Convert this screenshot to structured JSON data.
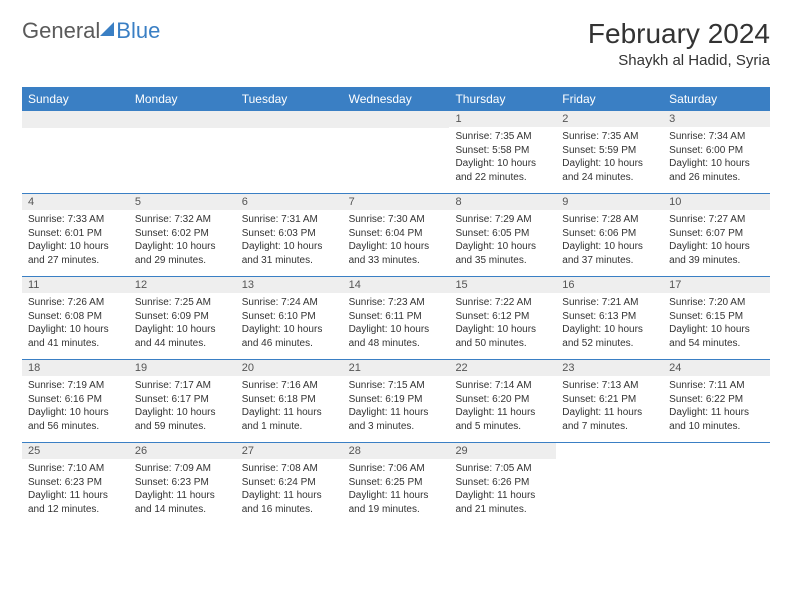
{
  "logo": {
    "part1": "General",
    "part2": "Blue"
  },
  "header": {
    "month_title": "February 2024",
    "location": "Shaykh al Hadid, Syria"
  },
  "colors": {
    "header_bg": "#3a7fc4",
    "header_text": "#ffffff",
    "daynum_bg": "#eeeeee",
    "divider": "#3a7fc4",
    "body_text": "#333333"
  },
  "day_names": [
    "Sunday",
    "Monday",
    "Tuesday",
    "Wednesday",
    "Thursday",
    "Friday",
    "Saturday"
  ],
  "weeks": [
    [
      null,
      null,
      null,
      null,
      {
        "n": "1",
        "sunrise": "Sunrise: 7:35 AM",
        "sunset": "Sunset: 5:58 PM",
        "dl1": "Daylight: 10 hours",
        "dl2": "and 22 minutes."
      },
      {
        "n": "2",
        "sunrise": "Sunrise: 7:35 AM",
        "sunset": "Sunset: 5:59 PM",
        "dl1": "Daylight: 10 hours",
        "dl2": "and 24 minutes."
      },
      {
        "n": "3",
        "sunrise": "Sunrise: 7:34 AM",
        "sunset": "Sunset: 6:00 PM",
        "dl1": "Daylight: 10 hours",
        "dl2": "and 26 minutes."
      }
    ],
    [
      {
        "n": "4",
        "sunrise": "Sunrise: 7:33 AM",
        "sunset": "Sunset: 6:01 PM",
        "dl1": "Daylight: 10 hours",
        "dl2": "and 27 minutes."
      },
      {
        "n": "5",
        "sunrise": "Sunrise: 7:32 AM",
        "sunset": "Sunset: 6:02 PM",
        "dl1": "Daylight: 10 hours",
        "dl2": "and 29 minutes."
      },
      {
        "n": "6",
        "sunrise": "Sunrise: 7:31 AM",
        "sunset": "Sunset: 6:03 PM",
        "dl1": "Daylight: 10 hours",
        "dl2": "and 31 minutes."
      },
      {
        "n": "7",
        "sunrise": "Sunrise: 7:30 AM",
        "sunset": "Sunset: 6:04 PM",
        "dl1": "Daylight: 10 hours",
        "dl2": "and 33 minutes."
      },
      {
        "n": "8",
        "sunrise": "Sunrise: 7:29 AM",
        "sunset": "Sunset: 6:05 PM",
        "dl1": "Daylight: 10 hours",
        "dl2": "and 35 minutes."
      },
      {
        "n": "9",
        "sunrise": "Sunrise: 7:28 AM",
        "sunset": "Sunset: 6:06 PM",
        "dl1": "Daylight: 10 hours",
        "dl2": "and 37 minutes."
      },
      {
        "n": "10",
        "sunrise": "Sunrise: 7:27 AM",
        "sunset": "Sunset: 6:07 PM",
        "dl1": "Daylight: 10 hours",
        "dl2": "and 39 minutes."
      }
    ],
    [
      {
        "n": "11",
        "sunrise": "Sunrise: 7:26 AM",
        "sunset": "Sunset: 6:08 PM",
        "dl1": "Daylight: 10 hours",
        "dl2": "and 41 minutes."
      },
      {
        "n": "12",
        "sunrise": "Sunrise: 7:25 AM",
        "sunset": "Sunset: 6:09 PM",
        "dl1": "Daylight: 10 hours",
        "dl2": "and 44 minutes."
      },
      {
        "n": "13",
        "sunrise": "Sunrise: 7:24 AM",
        "sunset": "Sunset: 6:10 PM",
        "dl1": "Daylight: 10 hours",
        "dl2": "and 46 minutes."
      },
      {
        "n": "14",
        "sunrise": "Sunrise: 7:23 AM",
        "sunset": "Sunset: 6:11 PM",
        "dl1": "Daylight: 10 hours",
        "dl2": "and 48 minutes."
      },
      {
        "n": "15",
        "sunrise": "Sunrise: 7:22 AM",
        "sunset": "Sunset: 6:12 PM",
        "dl1": "Daylight: 10 hours",
        "dl2": "and 50 minutes."
      },
      {
        "n": "16",
        "sunrise": "Sunrise: 7:21 AM",
        "sunset": "Sunset: 6:13 PM",
        "dl1": "Daylight: 10 hours",
        "dl2": "and 52 minutes."
      },
      {
        "n": "17",
        "sunrise": "Sunrise: 7:20 AM",
        "sunset": "Sunset: 6:15 PM",
        "dl1": "Daylight: 10 hours",
        "dl2": "and 54 minutes."
      }
    ],
    [
      {
        "n": "18",
        "sunrise": "Sunrise: 7:19 AM",
        "sunset": "Sunset: 6:16 PM",
        "dl1": "Daylight: 10 hours",
        "dl2": "and 56 minutes."
      },
      {
        "n": "19",
        "sunrise": "Sunrise: 7:17 AM",
        "sunset": "Sunset: 6:17 PM",
        "dl1": "Daylight: 10 hours",
        "dl2": "and 59 minutes."
      },
      {
        "n": "20",
        "sunrise": "Sunrise: 7:16 AM",
        "sunset": "Sunset: 6:18 PM",
        "dl1": "Daylight: 11 hours",
        "dl2": "and 1 minute."
      },
      {
        "n": "21",
        "sunrise": "Sunrise: 7:15 AM",
        "sunset": "Sunset: 6:19 PM",
        "dl1": "Daylight: 11 hours",
        "dl2": "and 3 minutes."
      },
      {
        "n": "22",
        "sunrise": "Sunrise: 7:14 AM",
        "sunset": "Sunset: 6:20 PM",
        "dl1": "Daylight: 11 hours",
        "dl2": "and 5 minutes."
      },
      {
        "n": "23",
        "sunrise": "Sunrise: 7:13 AM",
        "sunset": "Sunset: 6:21 PM",
        "dl1": "Daylight: 11 hours",
        "dl2": "and 7 minutes."
      },
      {
        "n": "24",
        "sunrise": "Sunrise: 7:11 AM",
        "sunset": "Sunset: 6:22 PM",
        "dl1": "Daylight: 11 hours",
        "dl2": "and 10 minutes."
      }
    ],
    [
      {
        "n": "25",
        "sunrise": "Sunrise: 7:10 AM",
        "sunset": "Sunset: 6:23 PM",
        "dl1": "Daylight: 11 hours",
        "dl2": "and 12 minutes."
      },
      {
        "n": "26",
        "sunrise": "Sunrise: 7:09 AM",
        "sunset": "Sunset: 6:23 PM",
        "dl1": "Daylight: 11 hours",
        "dl2": "and 14 minutes."
      },
      {
        "n": "27",
        "sunrise": "Sunrise: 7:08 AM",
        "sunset": "Sunset: 6:24 PM",
        "dl1": "Daylight: 11 hours",
        "dl2": "and 16 minutes."
      },
      {
        "n": "28",
        "sunrise": "Sunrise: 7:06 AM",
        "sunset": "Sunset: 6:25 PM",
        "dl1": "Daylight: 11 hours",
        "dl2": "and 19 minutes."
      },
      {
        "n": "29",
        "sunrise": "Sunrise: 7:05 AM",
        "sunset": "Sunset: 6:26 PM",
        "dl1": "Daylight: 11 hours",
        "dl2": "and 21 minutes."
      },
      null,
      null
    ]
  ]
}
